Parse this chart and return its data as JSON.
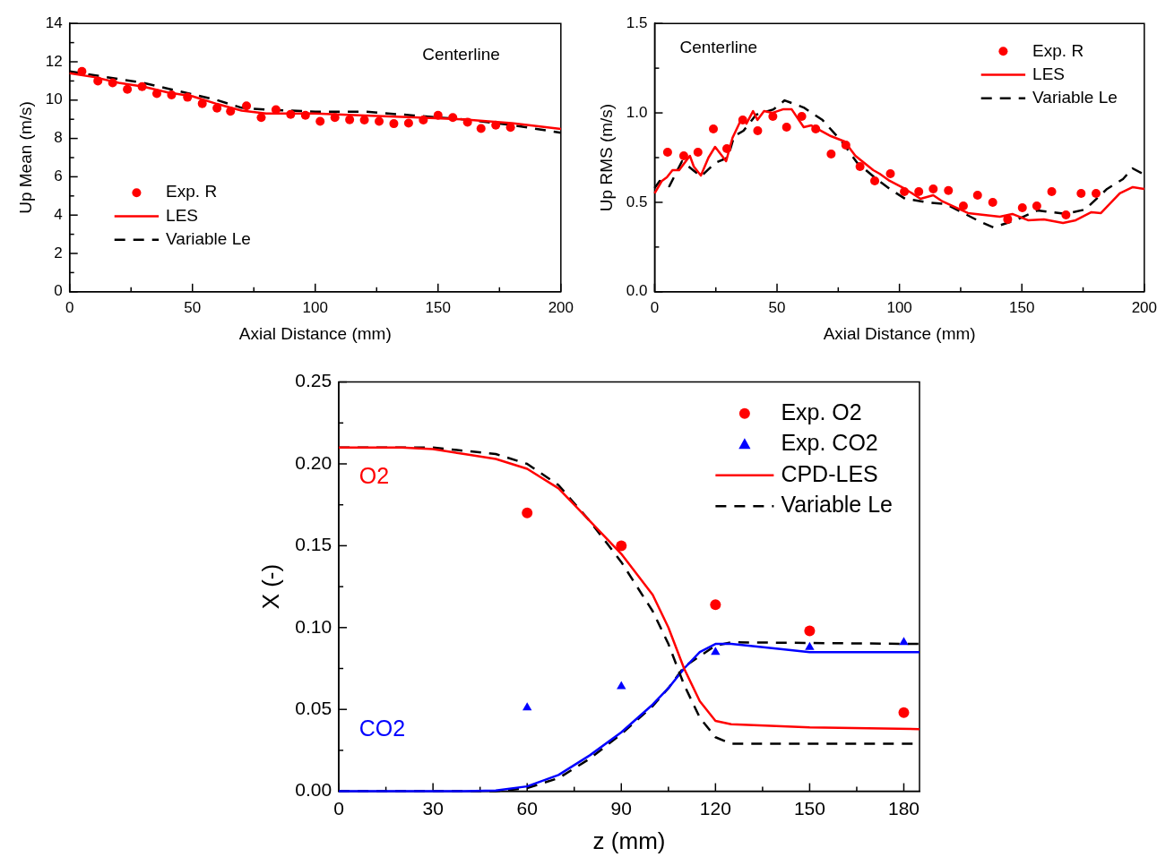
{
  "chart_data": [
    {
      "type": "scatter",
      "xlabel": "Axial Distance (mm)",
      "ylabel": "Up Mean (m/s)",
      "annotations": [
        "Centerline"
      ],
      "xlim": [
        0,
        200
      ],
      "ylim": [
        0,
        14
      ],
      "xticks": [
        0,
        {
          "value": 25,
          "label": null
        },
        50,
        {
          "value": 75,
          "label": null
        },
        100,
        {
          "value": 125,
          "label": null
        },
        150,
        {
          "value": 175,
          "label": null
        },
        200
      ],
      "yticks": [
        0,
        {
          "value": 1,
          "label": null
        },
        2,
        {
          "value": 3,
          "label": null
        },
        4,
        {
          "value": 5,
          "label": null
        },
        6,
        {
          "value": 7,
          "label": null
        },
        8,
        {
          "value": 9,
          "label": null
        },
        10,
        {
          "value": 11,
          "label": null
        },
        12,
        {
          "value": 13,
          "label": null
        },
        14
      ],
      "grid": false,
      "legend": "bottom left",
      "series": [
        {
          "name": "Exp. R",
          "type": "scatter",
          "marker": "circle",
          "color": "#ff0000",
          "x": [
            5,
            11.5,
            17.5,
            23.5,
            29.5,
            35.5,
            41.5,
            48,
            54,
            60,
            65.5,
            72,
            78,
            84,
            90,
            96,
            102,
            108,
            114,
            120,
            126,
            132,
            138,
            144,
            150,
            156,
            162,
            167.5,
            173.5,
            179.5
          ],
          "values": [
            11.5,
            11.0,
            10.9,
            10.56,
            10.7,
            10.34,
            10.27,
            10.15,
            9.82,
            9.58,
            9.42,
            9.7,
            9.09,
            9.5,
            9.26,
            9.21,
            8.89,
            9.09,
            8.98,
            8.96,
            8.89,
            8.77,
            8.8,
            8.96,
            9.21,
            9.09,
            8.85,
            8.52,
            8.69,
            8.58
          ]
        },
        {
          "name": "LES",
          "type": "line",
          "line_style": "solid",
          "color": "#ff0000",
          "x": [
            0,
            10,
            20,
            30,
            40,
            50,
            60,
            70,
            80,
            100,
            120,
            140,
            160,
            180,
            200
          ],
          "values": [
            11.4,
            11.2,
            10.9,
            10.7,
            10.4,
            10.2,
            9.8,
            9.45,
            9.3,
            9.3,
            9.2,
            9.1,
            9.0,
            8.8,
            8.5
          ]
        },
        {
          "name": "Variable Le",
          "type": "line",
          "line_style": "dashed",
          "color": "#000000",
          "x": [
            0,
            10,
            20,
            30,
            40,
            50,
            60,
            70,
            80,
            100,
            120,
            140,
            160,
            180,
            200
          ],
          "values": [
            11.5,
            11.3,
            11.1,
            10.9,
            10.6,
            10.3,
            10.0,
            9.6,
            9.5,
            9.4,
            9.4,
            9.2,
            9.0,
            8.7,
            8.3
          ]
        }
      ]
    },
    {
      "type": "scatter",
      "xlabel": "Axial Distance (mm)",
      "ylabel": "Up RMS (m/s)",
      "annotations": [
        "Centerline"
      ],
      "xlim": [
        0,
        200
      ],
      "ylim": [
        0,
        1.5
      ],
      "xticks": [
        0,
        {
          "value": 25,
          "label": null
        },
        50,
        {
          "value": 75,
          "label": null
        },
        100,
        {
          "value": 125,
          "label": null
        },
        150,
        {
          "value": 175,
          "label": null
        },
        200
      ],
      "yticks": [
        {
          "value": 0,
          "label": "0.0"
        },
        {
          "value": 0.25,
          "label": null
        },
        {
          "value": 0.5,
          "label": "0.5"
        },
        {
          "value": 0.75,
          "label": null
        },
        {
          "value": 1,
          "label": "1.0"
        },
        {
          "value": 1.25,
          "label": null
        },
        {
          "value": 1.5,
          "label": "1.5"
        }
      ],
      "grid": false,
      "legend": "top right",
      "series": [
        {
          "name": "Exp. R",
          "type": "scatter",
          "marker": "circle",
          "color": "#ff0000",
          "x": [
            5.3,
            11.9,
            17.7,
            24,
            29.5,
            36,
            42.1,
            48.3,
            53.9,
            60.1,
            65.8,
            72.1,
            78.1,
            83.9,
            89.9,
            96.3,
            102,
            107.9,
            113.8,
            120,
            126.1,
            131.9,
            138.1,
            144.2,
            150.2,
            156.1,
            162.2,
            168,
            174.2,
            180.3
          ],
          "values": [
            0.78,
            0.76,
            0.78,
            0.91,
            0.8,
            0.96,
            0.9,
            0.98,
            0.92,
            0.98,
            0.91,
            0.77,
            0.82,
            0.7,
            0.62,
            0.66,
            0.56,
            0.56,
            0.575,
            0.566,
            0.48,
            0.54,
            0.5,
            0.405,
            0.47,
            0.48,
            0.56,
            0.43,
            0.55,
            0.55
          ]
        },
        {
          "name": "LES",
          "type": "line",
          "line_style": "solid",
          "color": "#ff0000",
          "x": [
            0,
            3,
            5,
            7.3,
            10,
            14.4,
            16,
            18.9,
            22,
            24.7,
            29.2,
            31.8,
            35.6,
            37.5,
            40.2,
            42,
            44.7,
            48,
            52.4,
            56,
            60.9,
            64,
            68,
            72,
            77.6,
            82,
            89.3,
            91.9,
            96,
            102.3,
            108.6,
            113.8,
            117.6,
            128,
            141,
            146.1,
            152.5,
            159,
            166.8,
            172,
            178.4,
            182.3,
            190,
            195.3,
            200
          ],
          "values": [
            0.55,
            0.62,
            0.64,
            0.68,
            0.68,
            0.76,
            0.7,
            0.65,
            0.75,
            0.81,
            0.73,
            0.86,
            0.97,
            0.94,
            1.01,
            0.96,
            1.01,
            1.0,
            1.02,
            1.02,
            0.92,
            0.93,
            0.9,
            0.87,
            0.84,
            0.76,
            0.68,
            0.66,
            0.62,
            0.575,
            0.52,
            0.54,
            0.505,
            0.44,
            0.42,
            0.435,
            0.4,
            0.405,
            0.385,
            0.4,
            0.445,
            0.44,
            0.55,
            0.585,
            0.575
          ]
        },
        {
          "name": "Variable Le",
          "type": "line",
          "line_style": "dashed",
          "color": "#000000",
          "x": [
            0,
            2.1,
            6,
            11.2,
            15.7,
            18.9,
            24.7,
            29.9,
            32.5,
            36.3,
            41.5,
            48.6,
            53.1,
            60.9,
            68.6,
            76.4,
            82.8,
            90.6,
            97,
            102.3,
            111.3,
            119,
            126.8,
            133.2,
            138.4,
            147.4,
            156.4,
            168,
            175.8,
            184.8,
            191.3,
            195.2,
            200
          ],
          "values": [
            0.58,
            0.62,
            0.59,
            0.73,
            0.68,
            0.645,
            0.72,
            0.75,
            0.87,
            0.9,
            0.99,
            1.02,
            1.07,
            1.03,
            0.96,
            0.84,
            0.72,
            0.63,
            0.566,
            0.52,
            0.5,
            0.49,
            0.435,
            0.39,
            0.36,
            0.4,
            0.455,
            0.435,
            0.46,
            0.575,
            0.63,
            0.69,
            0.655
          ]
        }
      ]
    },
    {
      "type": "scatter",
      "xlabel": "z (mm)",
      "ylabel": "X (-)",
      "xlim": [
        0,
        185
      ],
      "ylim": [
        0,
        0.25
      ],
      "annotations": [
        "O2",
        "CO2"
      ],
      "xticks": [
        0,
        {
          "value": 15,
          "label": null
        },
        30,
        {
          "value": 45,
          "label": null
        },
        60,
        {
          "value": 75,
          "label": null
        },
        90,
        {
          "value": 105,
          "label": null
        },
        120,
        {
          "value": 135,
          "label": null
        },
        150,
        {
          "value": 165,
          "label": null
        },
        180
      ],
      "yticks": [
        {
          "value": 0,
          "label": "0.00"
        },
        {
          "value": 0.025,
          "label": null
        },
        {
          "value": 0.05,
          "label": "0.05"
        },
        {
          "value": 0.075,
          "label": null
        },
        {
          "value": 0.1,
          "label": "0.10"
        },
        {
          "value": 0.125,
          "label": null
        },
        {
          "value": 0.15,
          "label": "0.15"
        },
        {
          "value": 0.175,
          "label": null
        },
        {
          "value": 0.2,
          "label": "0.20"
        },
        {
          "value": 0.225,
          "label": null
        },
        {
          "value": 0.25,
          "label": "0.25"
        }
      ],
      "grid": false,
      "legend": "top right",
      "series": [
        {
          "name": "Exp. O2",
          "type": "scatter",
          "marker": "circle",
          "color": "#ff0000",
          "x": [
            60,
            90,
            120,
            150,
            180
          ],
          "values": [
            0.17,
            0.15,
            0.114,
            0.098,
            0.048
          ]
        },
        {
          "name": "Exp. CO2",
          "type": "scatter",
          "marker": "triangle",
          "color": "#0000ff",
          "x": [
            60,
            90,
            120,
            150,
            180
          ],
          "values": [
            0.051,
            0.064,
            0.085,
            0.088,
            0.091
          ]
        },
        {
          "name": "CPD-LES",
          "type": "line",
          "line_style": "solid",
          "color": "#ff0000",
          "x": [
            0,
            20,
            30,
            40,
            50,
            60,
            70,
            80,
            90,
            100,
            105,
            110,
            115,
            120,
            125,
            150,
            185
          ],
          "values": [
            0.21,
            0.21,
            0.209,
            0.206,
            0.203,
            0.197,
            0.185,
            0.165,
            0.145,
            0.12,
            0.1,
            0.075,
            0.055,
            0.043,
            0.041,
            0.039,
            0.038
          ]
        },
        {
          "name": "Variable Le",
          "type": "line",
          "line_style": "dashed",
          "color": "#000000",
          "x": [
            0,
            30,
            50,
            60,
            70,
            80,
            90,
            100,
            105,
            110,
            115,
            120,
            125,
            185
          ],
          "values": [
            0.21,
            0.21,
            0.206,
            0.2,
            0.187,
            0.165,
            0.14,
            0.11,
            0.09,
            0.065,
            0.045,
            0.033,
            0.029,
            0.029
          ]
        },
        {
          "type": "line",
          "line_style": "solid",
          "color": "#0000ff",
          "x": [
            0,
            40,
            50,
            60,
            70,
            80,
            90,
            100,
            105,
            110,
            115,
            120,
            125,
            140,
            150,
            185
          ],
          "values": [
            0,
            0,
            0.0005,
            0.003,
            0.01,
            0.022,
            0.036,
            0.053,
            0.063,
            0.075,
            0.085,
            0.09,
            0.09,
            0.087,
            0.085,
            0.085
          ]
        },
        {
          "type": "line",
          "line_style": "dashed",
          "color": "#000000",
          "x": [
            0,
            40,
            50,
            60,
            70,
            80,
            90,
            100,
            105,
            110,
            120,
            125,
            185
          ],
          "values": [
            0,
            0,
            0,
            0.002,
            0.008,
            0.02,
            0.035,
            0.052,
            0.063,
            0.076,
            0.089,
            0.091,
            0.09
          ]
        }
      ]
    }
  ]
}
